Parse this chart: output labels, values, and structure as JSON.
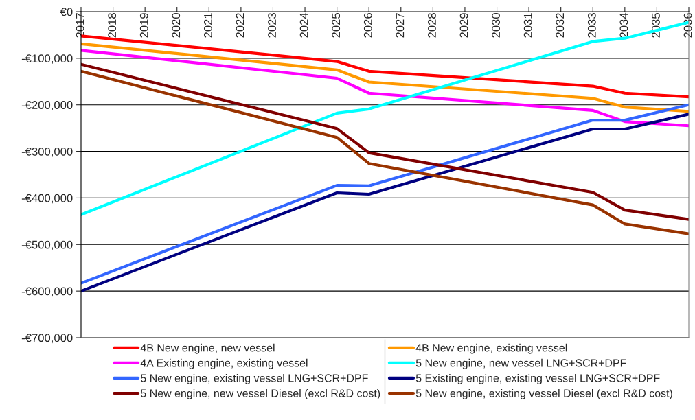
{
  "chart_data": {
    "type": "line",
    "x": [
      2017,
      2025,
      2026,
      2033,
      2034,
      2036
    ],
    "xlim": [
      2017,
      2036
    ],
    "xticks": [
      2017,
      2018,
      2019,
      2020,
      2021,
      2022,
      2023,
      2024,
      2025,
      2026,
      2027,
      2028,
      2029,
      2030,
      2031,
      2032,
      2033,
      2034,
      2035,
      2036
    ],
    "ylim": [
      -700000,
      0
    ],
    "yticks": [
      {
        "value": -700000,
        "label": "-€700,000"
      },
      {
        "value": -600000,
        "label": "-€600,000"
      },
      {
        "value": -500000,
        "label": "-€500,000"
      },
      {
        "value": -400000,
        "label": "-€400,000"
      },
      {
        "value": -300000,
        "label": "-€300,000"
      },
      {
        "value": -200000,
        "label": "-€200,000"
      },
      {
        "value": -100000,
        "label": "-€100,000"
      },
      {
        "value": 0,
        "label": "€0"
      }
    ],
    "grid": "y",
    "legend": "bottom",
    "marker": "none",
    "line_style": "solid",
    "series": [
      {
        "name": "4B New engine, new vessel",
        "color": "#ff0000",
        "values": [
          -52000,
          -107000,
          -128000,
          -160000,
          -175000,
          -183000
        ]
      },
      {
        "name": "4B New engine, existing vessel",
        "color": "#ff9900",
        "values": [
          -69000,
          -125000,
          -151000,
          -186000,
          -205000,
          -214000
        ]
      },
      {
        "name": "4A Existing engine, existing vessel",
        "color": "#ff00ff",
        "values": [
          -83000,
          -143000,
          -175000,
          -212000,
          -236000,
          -245000
        ]
      },
      {
        "name": "5 New engine, new vessel LNG+SCR+DPF",
        "color": "#00ffff",
        "values": [
          -436000,
          -218000,
          -209000,
          -64000,
          -57000,
          -23000
        ]
      },
      {
        "name": "5 New engine, existing vessel LNG+SCR+DPF",
        "color": "#3366ff",
        "values": [
          -583000,
          -373000,
          -374000,
          -233000,
          -233000,
          -200000
        ]
      },
      {
        "name": "5 Existing engine, existing vessel LNG+SCR+DPF",
        "color": "#000080",
        "values": [
          -600000,
          -389000,
          -392000,
          -252000,
          -252000,
          -220000
        ]
      },
      {
        "name": "5 New engine, new vessel Diesel (excl R&D cost)",
        "color": "#800000",
        "values": [
          -113000,
          -251000,
          -303000,
          -388000,
          -426000,
          -446000
        ]
      },
      {
        "name": "5 New engine, existing vessel Diesel (excl R&D cost)",
        "color": "#993300",
        "values": [
          -128000,
          -270000,
          -326000,
          -415000,
          -456000,
          -477000
        ]
      }
    ]
  }
}
